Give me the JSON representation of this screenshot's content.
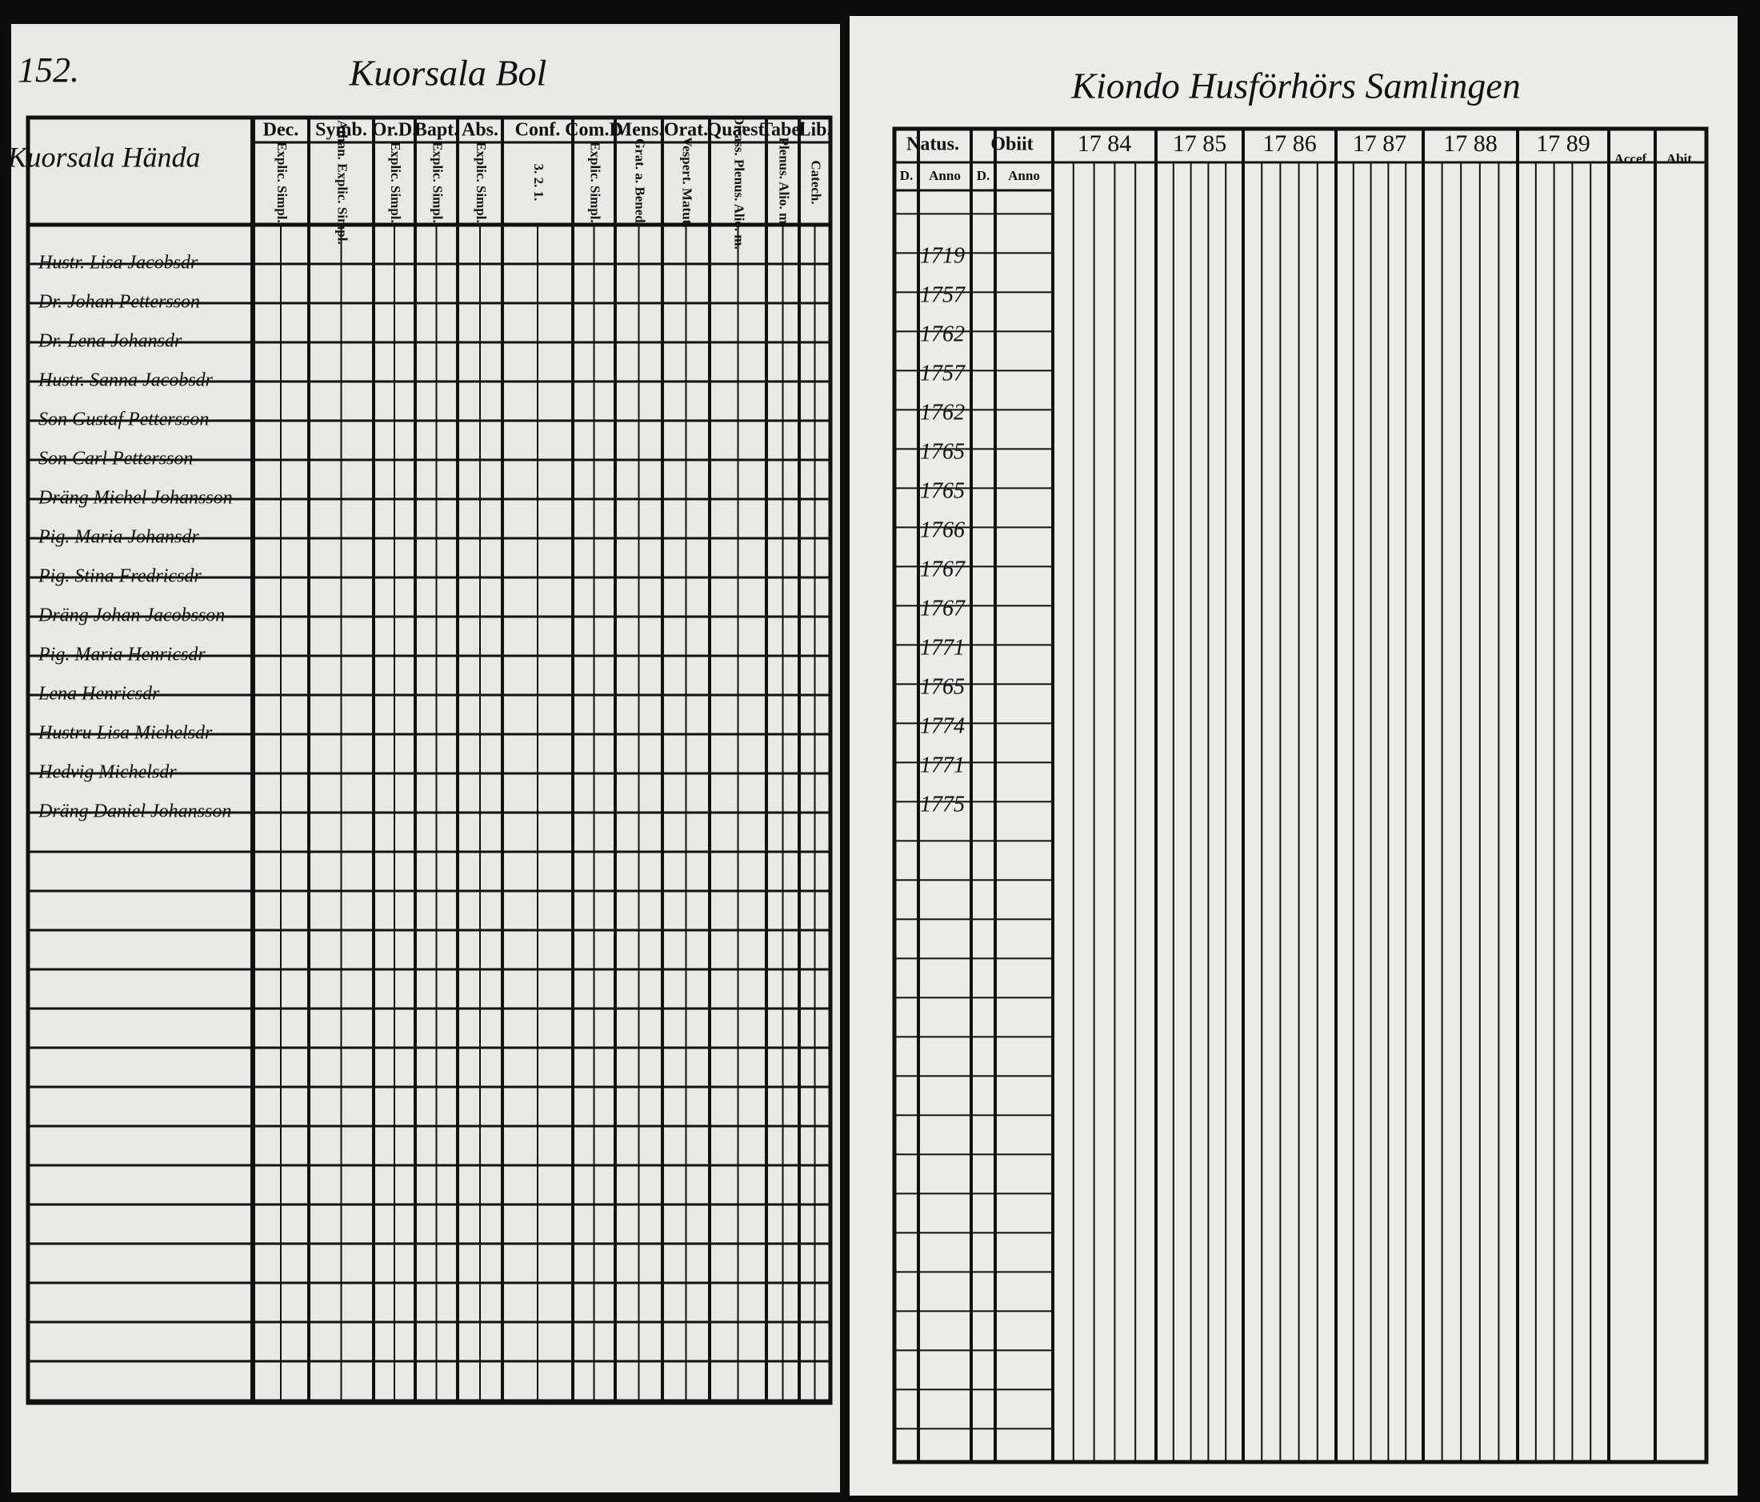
{
  "left_page": {
    "page_number": "152.",
    "title": "Kuorsala Bol",
    "corner_label": "Kuorsala Hända",
    "column_headers": [
      {
        "label": "Dec.",
        "sub": "Explic. Simpl."
      },
      {
        "label": "Symb.",
        "sub": "Athan. Explic. Simpl."
      },
      {
        "label": "Or.D.",
        "sub": "Explic. Simpl."
      },
      {
        "label": "Bapt.",
        "sub": "Explic. Simpl."
      },
      {
        "label": "Abs.",
        "sub": "Explic. Simpl."
      },
      {
        "label": "Conf.",
        "sub": "3. 2. 1."
      },
      {
        "label": "Com.D",
        "sub": "Explic. Simpl."
      },
      {
        "label": "Mens.",
        "sub": "Grat. a. Bened."
      },
      {
        "label": "Orat.",
        "sub": "Vespert. Matut."
      },
      {
        "label": "Quaest.",
        "sub": "Dicass. Plenus. Alio. m."
      },
      {
        "label": "Tabel",
        "sub": "Plenus. Alio. m."
      },
      {
        "label": "Lib.",
        "sub": "Catech."
      }
    ],
    "names": [
      "Hustr. Lisa Jacobsdr",
      "Dr. Johan Pettersson",
      "Dr. Lena Johansdr",
      "Hustr. Sanna Jacobsdr",
      "Son Gustaf Pettersson",
      "Son Carl Pettersson",
      "Dräng Michel Johansson",
      "Pig. Maria Johansdr",
      "Pig. Stina Fredricsdr",
      "Dräng Johan Jacobsson",
      "Pig. Maria Henricsdr",
      "Lena Henricsdr",
      "Hustru Lisa Michelsdr",
      "Hedvig Michelsdr",
      "Dräng Daniel Johansson"
    ]
  },
  "right_page": {
    "title": "Kiondo Husförhörs Samlingen",
    "natus": "Natus.",
    "obiit": "Obiit",
    "day": "D.",
    "anno": "Anno",
    "years": [
      "17 84",
      "17 85",
      "17 86",
      "17 87",
      "17 88",
      "17 89"
    ],
    "accef": "Accef.",
    "abit": "Abit.",
    "birth_years": [
      "1719",
      "1757",
      "1762",
      "1757",
      "1762",
      "1765",
      "1765",
      "1766",
      "1767",
      "1767",
      "1771",
      "1765",
      "1774",
      "1771",
      "1775"
    ]
  }
}
